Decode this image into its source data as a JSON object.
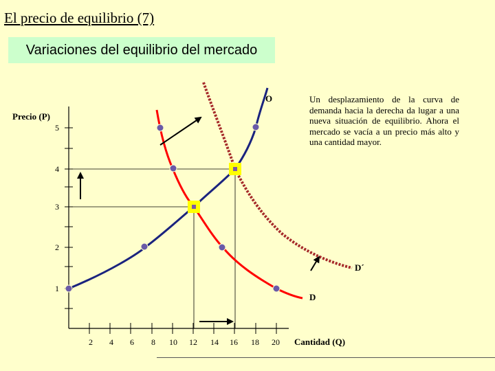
{
  "slide": {
    "title": "El precio de equilibrio (7)",
    "subtitle": "Variaciones del equilibrio del mercado",
    "explanation": "Un desplazamiento de la curva de demanda hacia la derecha da lugar a una nueva situación de equilibrio. Ahora el mercado se vacía a un precio más alto y una cantidad mayor."
  },
  "diagram": {
    "y_axis_label": "Precio (P)",
    "x_axis_label": "Cantidad (Q)",
    "y_ticks": [
      "5",
      "4",
      "3",
      "2",
      "1"
    ],
    "x_ticks": [
      "2",
      "4",
      "6",
      "8",
      "10",
      "12",
      "14",
      "16",
      "18",
      "20"
    ],
    "supply_label": "O",
    "demand_label": "D",
    "new_demand_label": "D´",
    "colors": {
      "supply": "#1a237e",
      "demand": "#ff0000",
      "new_demand": "#a52a2a",
      "equilibrium_marker": "#ffff00",
      "point": "#6a5aa8",
      "background": "#ffffcc",
      "subtitle_box": "#ccffcc"
    },
    "initial_equilibrium": {
      "q": 12,
      "p": 3
    },
    "new_equilibrium": {
      "q": 16,
      "p": 4
    }
  }
}
